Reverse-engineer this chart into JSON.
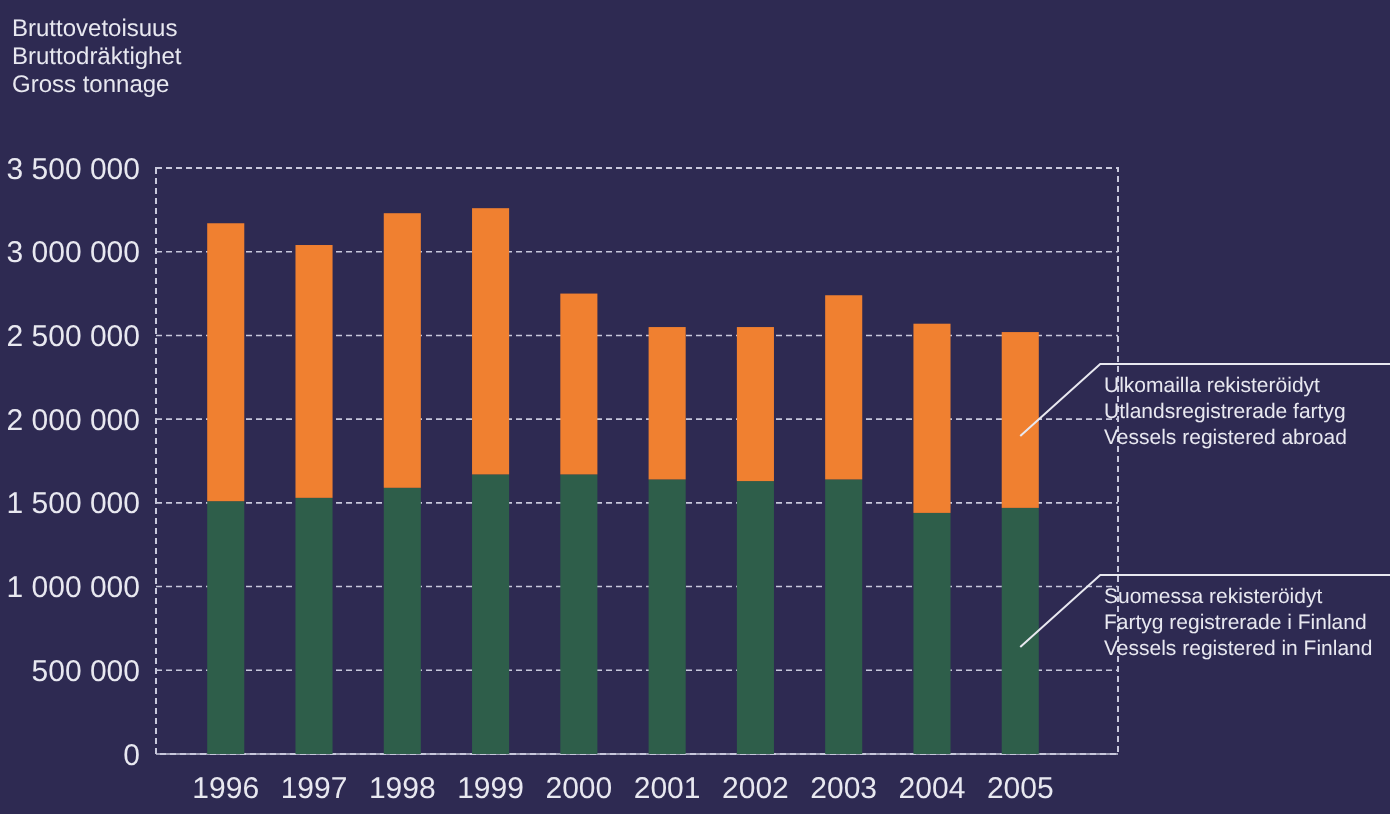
{
  "chart_data": {
    "type": "bar",
    "stacked": true,
    "ylabel": "Bruttovetoisuus\nBruttodräktighet\nGross tonnage",
    "categories": [
      "1996",
      "1997",
      "1998",
      "1999",
      "2000",
      "2001",
      "2002",
      "2003",
      "2004",
      "2005"
    ],
    "series": [
      {
        "name": "Suomessa rekisteröidyt\nFartyg registrerade i Finland\nVessels registered in Finland",
        "color": "#2e5e4a",
        "values": [
          1510000,
          1530000,
          1590000,
          1670000,
          1670000,
          1640000,
          1630000,
          1640000,
          1440000,
          1470000
        ]
      },
      {
        "name": "Ulkomailla rekisteröidyt\nUtlandsregistrerade fartyg\nVessels registered abroad",
        "color": "#f08030",
        "values": [
          1660000,
          1510000,
          1640000,
          1590000,
          1080000,
          910000,
          920000,
          1100000,
          1130000,
          1050000
        ]
      }
    ],
    "ylim": [
      0,
      3500000
    ],
    "yticks": [
      0,
      {
        "value": 500000,
        "label": "500 000"
      },
      {
        "value": 1000000,
        "label": "1 000 000"
      },
      {
        "value": 1500000,
        "label": "1 500 000"
      },
      {
        "value": 2000000,
        "label": "2 000 000"
      },
      {
        "value": 2500000,
        "label": "2 500 000"
      },
      {
        "value": 3000000,
        "label": "3 000 000"
      },
      {
        "value": 3500000,
        "label": "3 500 000"
      }
    ],
    "grid": "y",
    "legend": "right"
  }
}
